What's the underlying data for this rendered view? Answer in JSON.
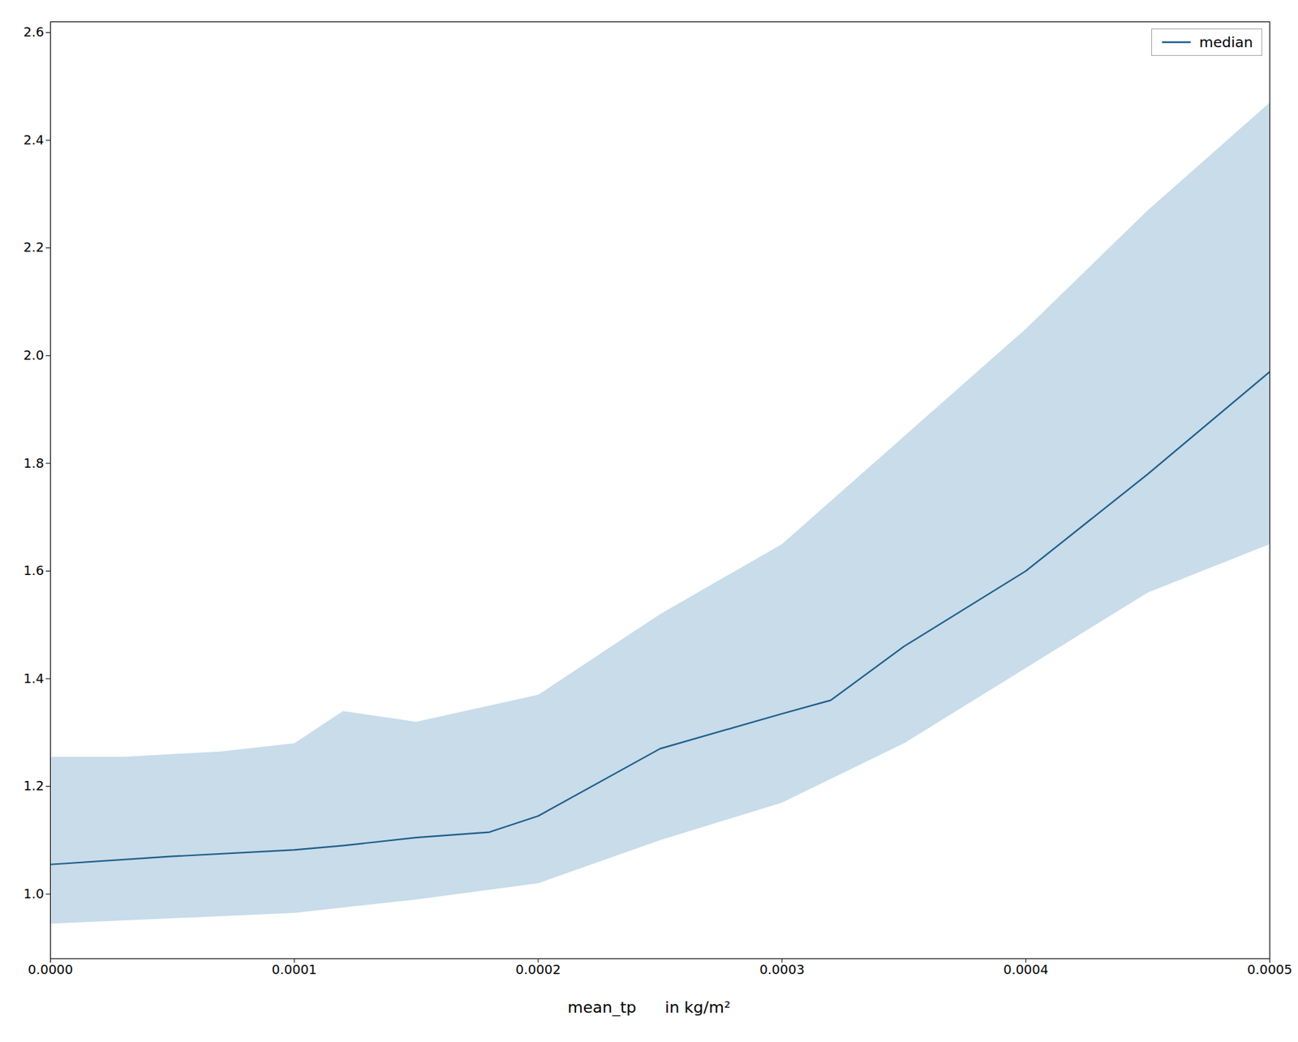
{
  "chart_data": {
    "type": "line",
    "xlabel": "mean_tp",
    "annotations": [
      {
        "text": "in kg/m²"
      }
    ],
    "xlim": [
      0.0,
      0.0005
    ],
    "xticks": [
      {
        "value": 0.0,
        "label": "0.0000"
      },
      {
        "value": 0.0001,
        "label": "0.0001"
      },
      {
        "value": 0.0002,
        "label": "0.0002"
      },
      {
        "value": 0.0003,
        "label": "0.0003"
      },
      {
        "value": 0.0004,
        "label": "0.0004"
      },
      {
        "value": 0.0005,
        "label": "0.0005"
      }
    ],
    "ylim": [
      0.88,
      2.62
    ],
    "yticks": [
      {
        "value": 1.0,
        "label": "1.0"
      },
      1.2,
      1.4,
      1.6,
      1.8,
      {
        "value": 2.0,
        "label": "2.0"
      },
      2.2,
      2.4,
      2.6
    ],
    "grid": false,
    "legend": "upper right",
    "series": [
      {
        "type": "band",
        "color": "#aac9df",
        "lower": {
          "x": [
            0.0,
            5e-05,
            0.0001,
            0.00015,
            0.0002,
            0.00025,
            0.0003,
            0.00035,
            0.0004,
            0.00045,
            0.0005
          ],
          "values": [
            0.945,
            0.955,
            0.965,
            0.99,
            1.02,
            1.1,
            1.17,
            1.28,
            1.42,
            1.56,
            1.65
          ]
        },
        "upper": {
          "x": [
            0.0,
            3e-05,
            7e-05,
            0.0001,
            0.00012,
            0.00015,
            0.0002,
            0.00025,
            0.0003,
            0.00035,
            0.0004,
            0.00045,
            0.0005
          ],
          "values": [
            1.255,
            1.255,
            1.265,
            1.28,
            1.34,
            1.32,
            1.37,
            1.52,
            1.65,
            1.85,
            2.05,
            2.27,
            2.47
          ]
        }
      },
      {
        "type": "line",
        "name": "median",
        "color": "#1f5f8b",
        "x": [
          0.0,
          5e-05,
          0.0001,
          0.00012,
          0.00015,
          0.00018,
          0.0002,
          0.00025,
          0.0003,
          0.00032,
          0.00035,
          0.0004,
          0.00045,
          0.0005
        ],
        "values": [
          1.055,
          1.07,
          1.082,
          1.09,
          1.105,
          1.115,
          1.145,
          1.27,
          1.335,
          1.36,
          1.46,
          1.6,
          1.78,
          1.97
        ]
      }
    ]
  }
}
